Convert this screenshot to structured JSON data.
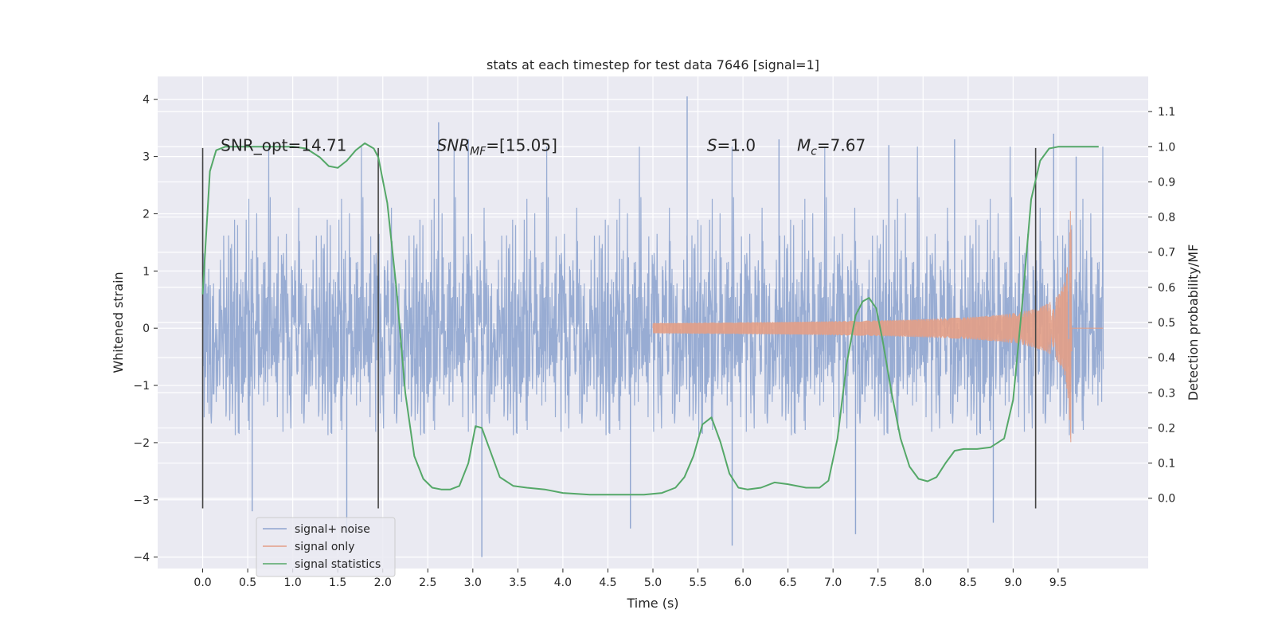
{
  "chart_data": {
    "type": "line",
    "title": "stats at each timestep for test data 7646 [signal=1]",
    "xlabel": "Time (s)",
    "ylabel": "Whitened strain",
    "y2label": "Detection probability/MF",
    "xlim": [
      -0.5,
      10.5
    ],
    "ylim": [
      -4.2,
      4.4
    ],
    "y2lim": [
      -0.2,
      1.2
    ],
    "x_ticks": [
      "0.0",
      "0.5",
      "1.0",
      "1.5",
      "2.0",
      "2.5",
      "3.0",
      "3.5",
      "4.0",
      "4.5",
      "5.0",
      "5.5",
      "6.0",
      "6.5",
      "7.0",
      "7.5",
      "8.0",
      "8.5",
      "9.0",
      "9.5"
    ],
    "y_ticks": [
      "4",
      "3",
      "2",
      "1",
      "0",
      "−1",
      "−2",
      "−3",
      "−4"
    ],
    "y2_ticks": [
      "1.1",
      "1.0",
      "0.9",
      "0.8",
      "0.7",
      "0.6",
      "0.5",
      "0.4",
      "0.3",
      "0.2",
      "0.1",
      "0.0"
    ],
    "grid": true,
    "legend_position": "lower-left",
    "series": [
      {
        "name": "signal+ noise",
        "color": "#8fa5cf",
        "x_range": [
          0.0,
          10.0
        ],
        "typical_amplitude": 2.0,
        "extremes": [
          -4.0,
          4.05
        ]
      },
      {
        "name": "signal only",
        "color": "#e39e86",
        "chirp_start": 5.0,
        "merger_time": 9.65,
        "peak_amplitude": 2.1
      },
      {
        "name": "signal statistics",
        "color": "#55a868",
        "x": [
          0.0,
          0.08,
          0.15,
          0.25,
          0.4,
          0.6,
          0.8,
          1.0,
          1.15,
          1.3,
          1.4,
          1.5,
          1.6,
          1.7,
          1.8,
          1.9,
          1.95,
          2.05,
          2.15,
          2.25,
          2.35,
          2.45,
          2.55,
          2.65,
          2.75,
          2.85,
          2.95,
          3.03,
          3.1,
          3.2,
          3.3,
          3.45,
          3.6,
          3.8,
          4.0,
          4.3,
          4.6,
          4.9,
          5.1,
          5.25,
          5.35,
          5.45,
          5.55,
          5.65,
          5.75,
          5.85,
          5.95,
          6.05,
          6.2,
          6.35,
          6.5,
          6.7,
          6.85,
          6.95,
          7.05,
          7.15,
          7.25,
          7.33,
          7.4,
          7.48,
          7.55,
          7.65,
          7.75,
          7.85,
          7.95,
          8.05,
          8.15,
          8.25,
          8.35,
          8.45,
          8.6,
          8.75,
          8.9,
          9.0,
          9.1,
          9.2,
          9.3,
          9.4,
          9.5,
          9.6,
          9.8,
          9.95
        ],
        "y": [
          0.58,
          0.93,
          0.99,
          1.0,
          1.0,
          1.0,
          1.0,
          1.0,
          0.995,
          0.97,
          0.945,
          0.94,
          0.96,
          0.99,
          1.01,
          0.995,
          0.97,
          0.84,
          0.6,
          0.3,
          0.12,
          0.055,
          0.03,
          0.025,
          0.025,
          0.035,
          0.1,
          0.205,
          0.2,
          0.13,
          0.06,
          0.035,
          0.03,
          0.025,
          0.015,
          0.01,
          0.01,
          0.01,
          0.015,
          0.03,
          0.06,
          0.12,
          0.21,
          0.23,
          0.16,
          0.07,
          0.03,
          0.025,
          0.03,
          0.045,
          0.04,
          0.03,
          0.03,
          0.05,
          0.17,
          0.38,
          0.52,
          0.56,
          0.57,
          0.54,
          0.45,
          0.3,
          0.17,
          0.09,
          0.055,
          0.048,
          0.06,
          0.1,
          0.135,
          0.14,
          0.14,
          0.145,
          0.17,
          0.28,
          0.55,
          0.85,
          0.96,
          0.995,
          1.0,
          1.0,
          1.0,
          1.0
        ]
      }
    ],
    "vertical_lines": [
      0.0,
      1.95,
      9.25
    ],
    "vertical_lines_ylim": [
      -3.15,
      3.15
    ],
    "annotations": [
      {
        "text": "SNR_opt=14.71",
        "x": 0.2
      },
      {
        "text": "SNR_MF=[15.05]",
        "x": 2.6,
        "math": true,
        "base": "SNR",
        "sub": "MF",
        "rest": "=[15.05]"
      },
      {
        "text": "S=1.0",
        "x": 5.6,
        "math": true,
        "base": "S",
        "rest": "=1.0"
      },
      {
        "text": "M_c=7.67",
        "x": 6.6,
        "math": true,
        "base": "M",
        "sub": "c",
        "rest": "=7.67"
      }
    ]
  }
}
